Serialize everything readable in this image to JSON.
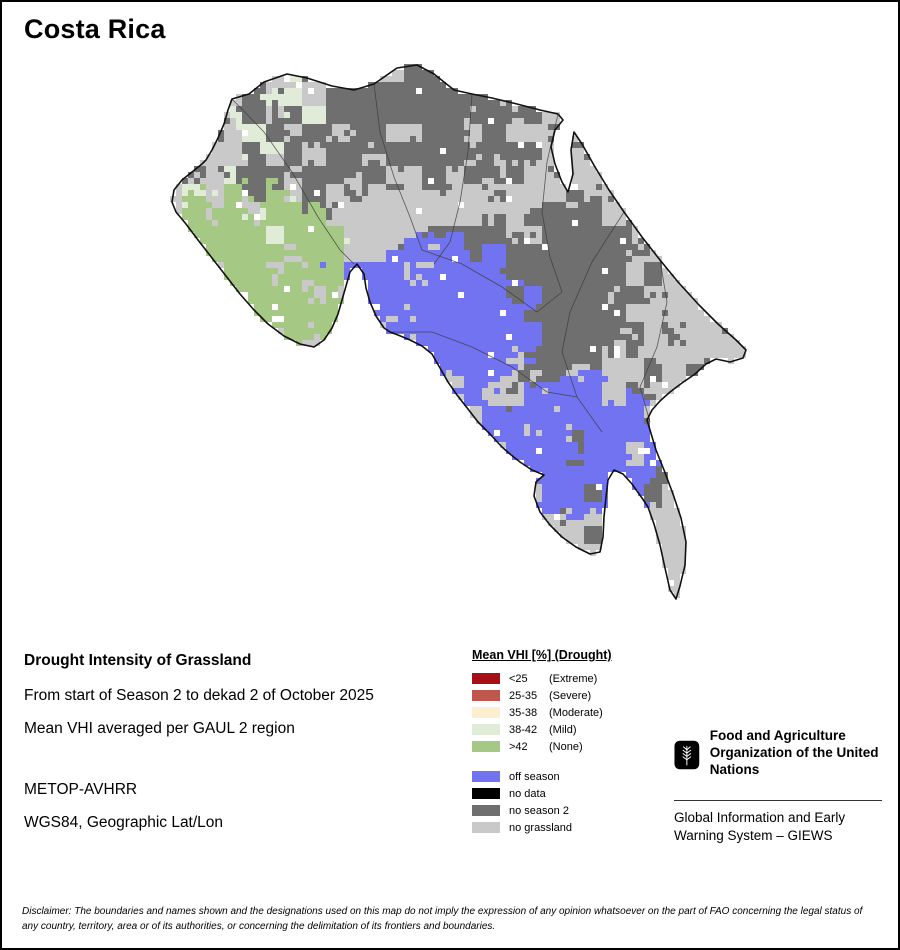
{
  "title": "Costa Rica",
  "info": {
    "heading": "Drought Intensity of Grassland",
    "period": "From start of Season 2 to dekad 2 of October 2025",
    "aggregation": "Mean VHI averaged per GAUL 2 region",
    "sensor": "METOP-AVHRR",
    "projection": "WGS84, Geographic Lat/Lon"
  },
  "legend": {
    "title": "Mean VHI [%] (Drought)",
    "classes": [
      {
        "label": "<25",
        "qualifier": "(Extreme)",
        "color": "#a50f15"
      },
      {
        "label": "25-35",
        "qualifier": "(Severe)",
        "color": "#c0574f"
      },
      {
        "label": "35-38",
        "qualifier": "(Moderate)",
        "color": "#fdeed0"
      },
      {
        "label": "38-42",
        "qualifier": "(Mild)",
        "color": "#e1ecd8"
      },
      {
        "label": ">42",
        "qualifier": "(None)",
        "color": "#a5c884"
      }
    ],
    "season_classes": [
      {
        "label": "off season",
        "color": "#7173f0"
      },
      {
        "label": "no data",
        "color": "#000000"
      },
      {
        "label": "no season 2",
        "color": "#6f6f6f"
      },
      {
        "label": "no grassland",
        "color": "#c9c9c9"
      }
    ]
  },
  "footer": {
    "fao_name": "Food and Agriculture Organization of the United Nations",
    "giews": "Global Information and Early Warning System – GIEWS",
    "disclaimer": "Disclaimer: The boundaries and names shown and the designations used on this map do not imply the expression of any opinion whatsoever on the part of FAO concerning the legal status of any country, territory, area or of its authorities, or concerning the delimitation of its frontiers and boundaries."
  }
}
